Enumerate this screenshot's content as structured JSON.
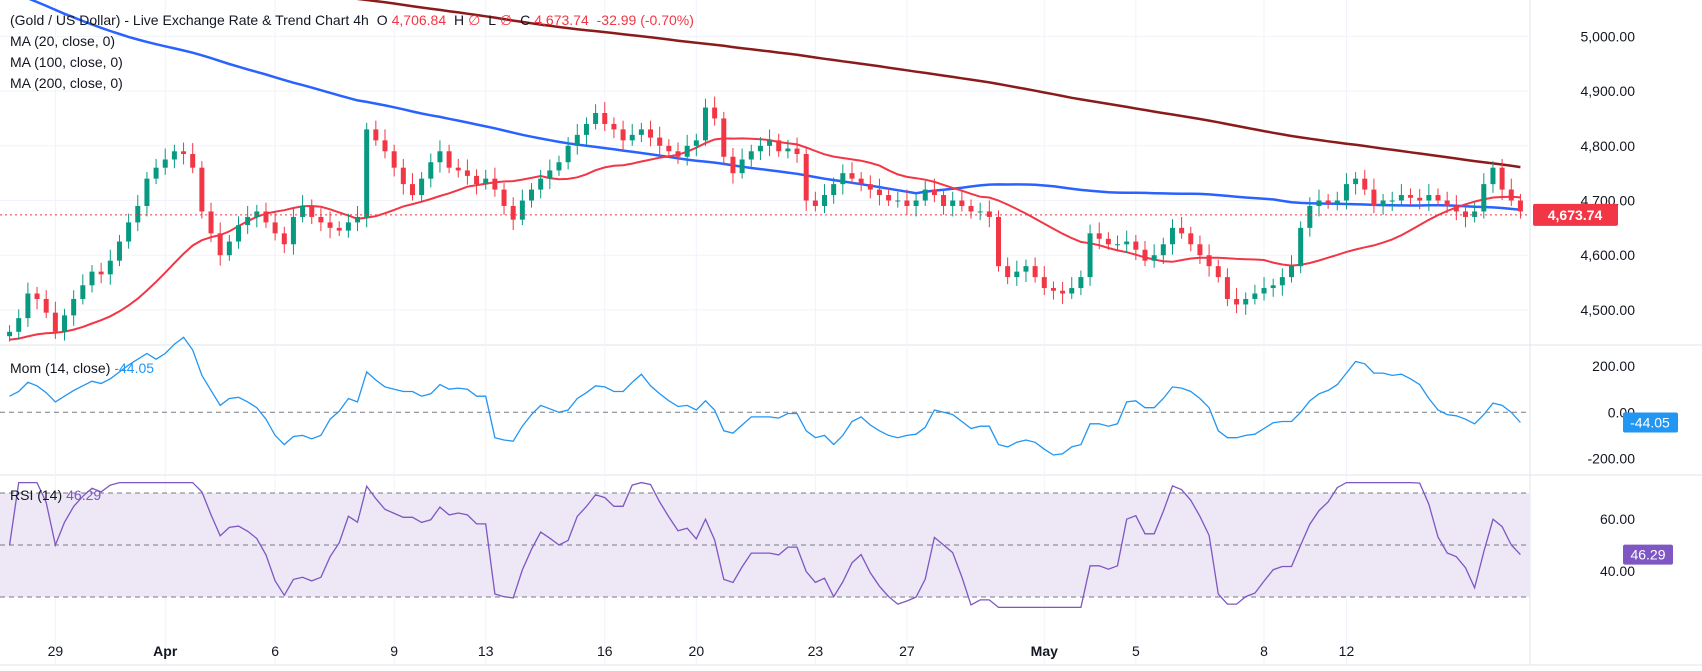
{
  "header": {
    "symbol": "(Gold / US Dollar) - Live Exchange Rate & Trend Chart",
    "interval": "4h",
    "o_label": "O",
    "o_value": "4,706.84",
    "h_label": "H",
    "h_value": "∅",
    "l_label": "L",
    "l_value": "∅",
    "c_label": "C",
    "c_value": "4,673.74",
    "change": "-32.99 (-0.70%)"
  },
  "indicators": {
    "ma20": "MA (20, close, 0)",
    "ma100": "MA (100, close, 0)",
    "ma200": "MA (200, close, 0)",
    "mom_label": "Mom (14, close)",
    "mom_value": "-44.05",
    "rsi_label": "RSI (14)",
    "rsi_value": "46.29"
  },
  "colors": {
    "up": "#089981",
    "down": "#f23645",
    "ma20": "#f23645",
    "ma100": "#2962ff",
    "ma200": "#8b1a1a",
    "mom": "#2196f3",
    "rsi": "#7e57c2",
    "rsi_band": "#ede7f6",
    "grid": "#f0f3fa",
    "last_price": "#f23645",
    "mom_tag": "#2196f3",
    "rsi_tag": "#7e57c2"
  },
  "chart_data": [
    {
      "type": "candlestick",
      "title": "(Gold / US Dollar) - Live Exchange Rate & Trend Chart",
      "interval": "4h",
      "y_ticks": [
        "5,000.00",
        "4,900.00",
        "4,800.00",
        "4,700.00",
        "4,600.00",
        "4,500.00"
      ],
      "y_tick_values": [
        5000,
        4900,
        4800,
        4700,
        4600,
        4500
      ],
      "ylim": [
        4445,
        5030
      ],
      "x_tick_labels": [
        "29",
        "Apr",
        "6",
        "9",
        "13",
        "16",
        "20",
        "23",
        "27",
        "May",
        "5",
        "8",
        "12"
      ],
      "x_tick_index": [
        5,
        17,
        29,
        42,
        52,
        65,
        75,
        88,
        98,
        113,
        123,
        137,
        146
      ],
      "last_price": 4673.74,
      "last_price_label": "4,673.74",
      "candle_closes": [
        4460,
        4485,
        4530,
        4520,
        4495,
        4460,
        4490,
        4520,
        4545,
        4570,
        4565,
        4590,
        4625,
        4660,
        4690,
        4740,
        4760,
        4775,
        4790,
        4785,
        4760,
        4680,
        4640,
        4600,
        4625,
        4655,
        4670,
        4680,
        4660,
        4640,
        4620,
        4670,
        4690,
        4670,
        4660,
        4650,
        4645,
        4660,
        4670,
        4830,
        4810,
        4790,
        4760,
        4730,
        4710,
        4740,
        4770,
        4790,
        4760,
        4755,
        4745,
        4730,
        4740,
        4720,
        4690,
        4665,
        4700,
        4720,
        4740,
        4755,
        4770,
        4800,
        4820,
        4840,
        4860,
        4840,
        4830,
        4810,
        4820,
        4830,
        4815,
        4800,
        4790,
        4780,
        4800,
        4810,
        4870,
        4850,
        4780,
        4750,
        4775,
        4790,
        4800,
        4810,
        4790,
        4795,
        4785,
        4700,
        4690,
        4710,
        4730,
        4750,
        4740,
        4730,
        4720,
        4710,
        4700,
        4700,
        4690,
        4700,
        4720,
        4710,
        4690,
        4700,
        4690,
        4680,
        4680,
        4670,
        4580,
        4560,
        4570,
        4580,
        4560,
        4540,
        4535,
        4530,
        4540,
        4560,
        4640,
        4630,
        4620,
        4620,
        4625,
        4610,
        4590,
        4600,
        4620,
        4650,
        4640,
        4620,
        4600,
        4580,
        4560,
        4520,
        4510,
        4520,
        4530,
        4540,
        4545,
        4560,
        4580,
        4650,
        4690,
        4700,
        4695,
        4700,
        4730,
        4740,
        4720,
        4690,
        4700,
        4700,
        4710,
        4705,
        4700,
        4710,
        4700,
        4690,
        4680,
        4670,
        4680,
        4730,
        4760,
        4720,
        4700,
        4680
      ]
    },
    {
      "type": "line",
      "title": "Mom (14, close)",
      "y_ticks": [
        "200.00",
        "0.00",
        "-200.00"
      ],
      "y_tick_values": [
        200,
        0,
        -200
      ],
      "ylim": [
        -250,
        270
      ],
      "last_value": -44.05,
      "last_value_label": "-44.05"
    },
    {
      "type": "line",
      "title": "RSI (14)",
      "y_ticks": [
        "60.00",
        "40.00"
      ],
      "y_tick_values": [
        60,
        40
      ],
      "bands": [
        30,
        50,
        70
      ],
      "ylim": [
        25,
        75
      ],
      "last_value": 46.29,
      "last_value_label": "46.29"
    }
  ]
}
